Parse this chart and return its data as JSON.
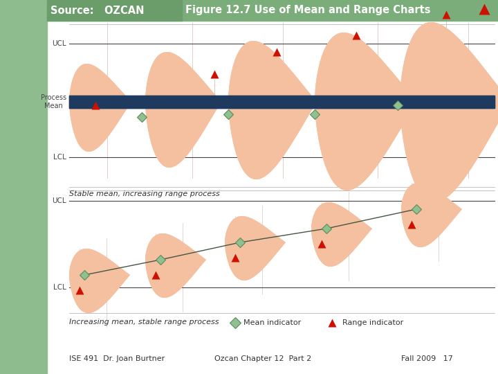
{
  "title": "Figure 12.7 Use of Mean and Range Charts",
  "bg_color": "#ffffff",
  "sidebar_color": "#8fbc8f",
  "header_green": "#7aad7a",
  "source_box_color": "#6a9d6a",
  "salmon": "#f5c0a0",
  "dark_blue": "#1e3a5f",
  "green_diamond_fill": "#90c090",
  "green_diamond_edge": "#5a8a5a",
  "red_tri": "#cc1100",
  "text_color": "#333333",
  "ucl_lcl_color": "#444444",
  "caption1": "Stable mean, increasing range process",
  "caption2": "Increasing mean, stable range process",
  "legend_mean": "Mean indicator",
  "legend_range": "Range indicator",
  "footer": [
    "ISE 491  Dr. Joan Burtner",
    "Ozcan Chapter 12  Part 2",
    "Fall 2009   17"
  ]
}
